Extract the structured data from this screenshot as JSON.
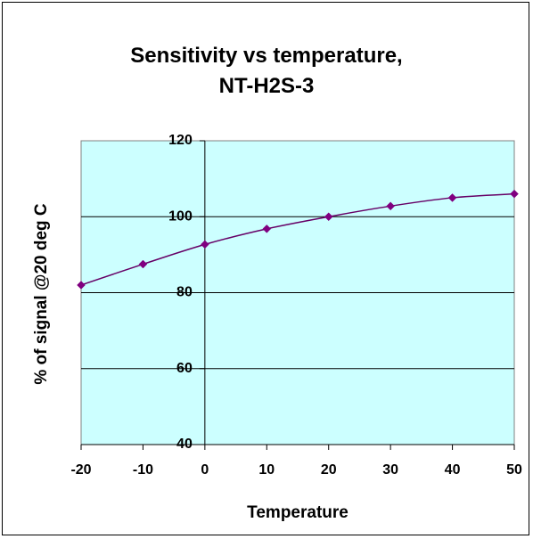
{
  "chart_data": {
    "type": "line",
    "title_lines": [
      "Sensitivity vs temperature,",
      "NT-H2S-3"
    ],
    "xlabel": "Temperature",
    "ylabel": "% of signal  @20 deg C",
    "x": [
      -20,
      -10,
      0,
      10,
      20,
      30,
      40,
      50
    ],
    "x_ticks": [
      "-20",
      "-10",
      "0",
      "10",
      "20",
      "30",
      "40",
      "50"
    ],
    "y_ticks": [
      "40",
      "60",
      "80",
      "100",
      "120"
    ],
    "xlim": [
      -20,
      50
    ],
    "ylim": [
      40,
      120
    ],
    "series": [
      {
        "values": [
          82,
          87.5,
          92.7,
          96.8,
          100,
          102.8,
          105,
          106
        ]
      }
    ],
    "grid": "horizontal",
    "legend": "none",
    "colors": {
      "plot_background": "#ccffff",
      "line": "#660066",
      "marker": "#800080",
      "gridline": "#000000"
    }
  }
}
